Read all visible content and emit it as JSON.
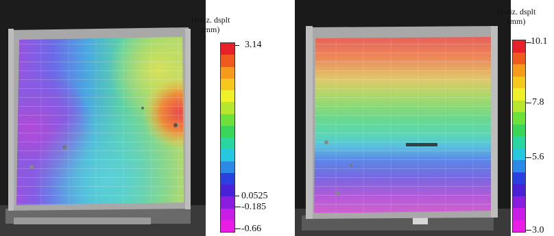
{
  "left_panel": {
    "colorbar": {
      "title_line1": "Horiz. dsplt",
      "title_line2": "(mm)",
      "ticks": [
        {
          "label": "3.14",
          "value": 3.14
        },
        {
          "label": "0.0525",
          "value": 0.0525
        },
        {
          "label": "-0.185",
          "value": -0.185
        },
        {
          "label": "-0.66",
          "value": -0.66
        }
      ]
    }
  },
  "right_panel": {
    "colorbar": {
      "title_line1": "Horiz. dsplt",
      "title_line2": "(mm)",
      "ticks": [
        {
          "label": "10.1",
          "value": 10.1
        },
        {
          "label": "7.8",
          "value": 7.8
        },
        {
          "label": "5.6",
          "value": 5.6
        },
        {
          "label": "3.0",
          "value": 3.0
        }
      ]
    }
  },
  "colors": {
    "scale_top_to_bottom": [
      "#e8202a",
      "#f05a1e",
      "#f59a1a",
      "#f6c81e",
      "#eef02a",
      "#b6e62e",
      "#6ee03a",
      "#3ad65a",
      "#2ad6a0",
      "#26c8e0",
      "#2a8ae6",
      "#2a40e0",
      "#4a20d8",
      "#8a1ee0",
      "#c81ee6",
      "#e81ee6"
    ]
  }
}
